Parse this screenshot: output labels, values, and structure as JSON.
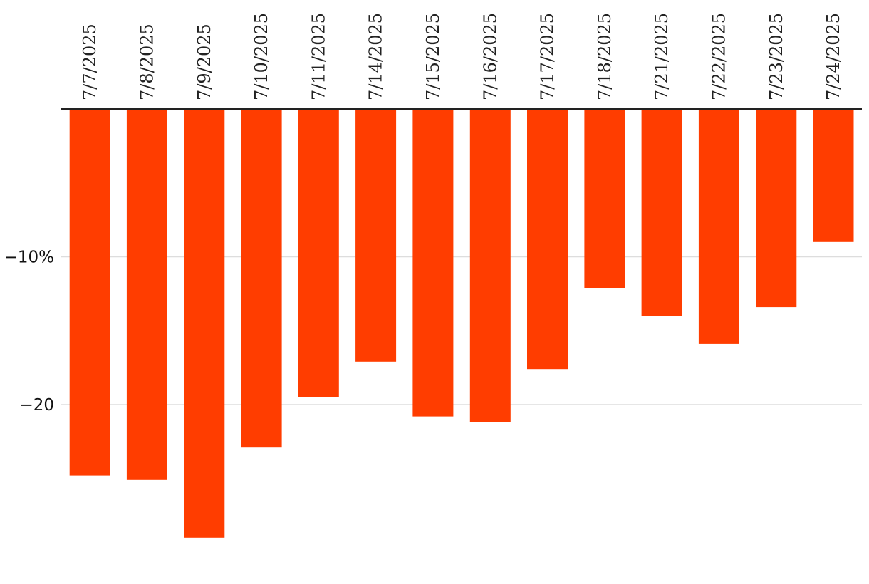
{
  "chart_data": {
    "type": "bar",
    "title": "",
    "xlabel": "",
    "ylabel": "",
    "categories": [
      "7/7/2025",
      "7/8/2025",
      "7/9/2025",
      "7/10/2025",
      "7/11/2025",
      "7/14/2025",
      "7/15/2025",
      "7/16/2025",
      "7/17/2025",
      "7/18/2025",
      "7/21/2025",
      "7/22/2025",
      "7/23/2025",
      "7/24/2025"
    ],
    "values": [
      -24.8,
      -25.1,
      -29.0,
      -22.9,
      -19.5,
      -17.1,
      -20.8,
      -21.2,
      -17.6,
      -12.1,
      -14.0,
      -15.9,
      -13.4,
      -9.0
    ],
    "ylim": [
      -31,
      0
    ],
    "yticks": [
      {
        "value": -10,
        "label": "−10%"
      },
      {
        "value": -20,
        "label": "−20"
      }
    ],
    "bar_color": "#ff3d00",
    "grid": true
  }
}
